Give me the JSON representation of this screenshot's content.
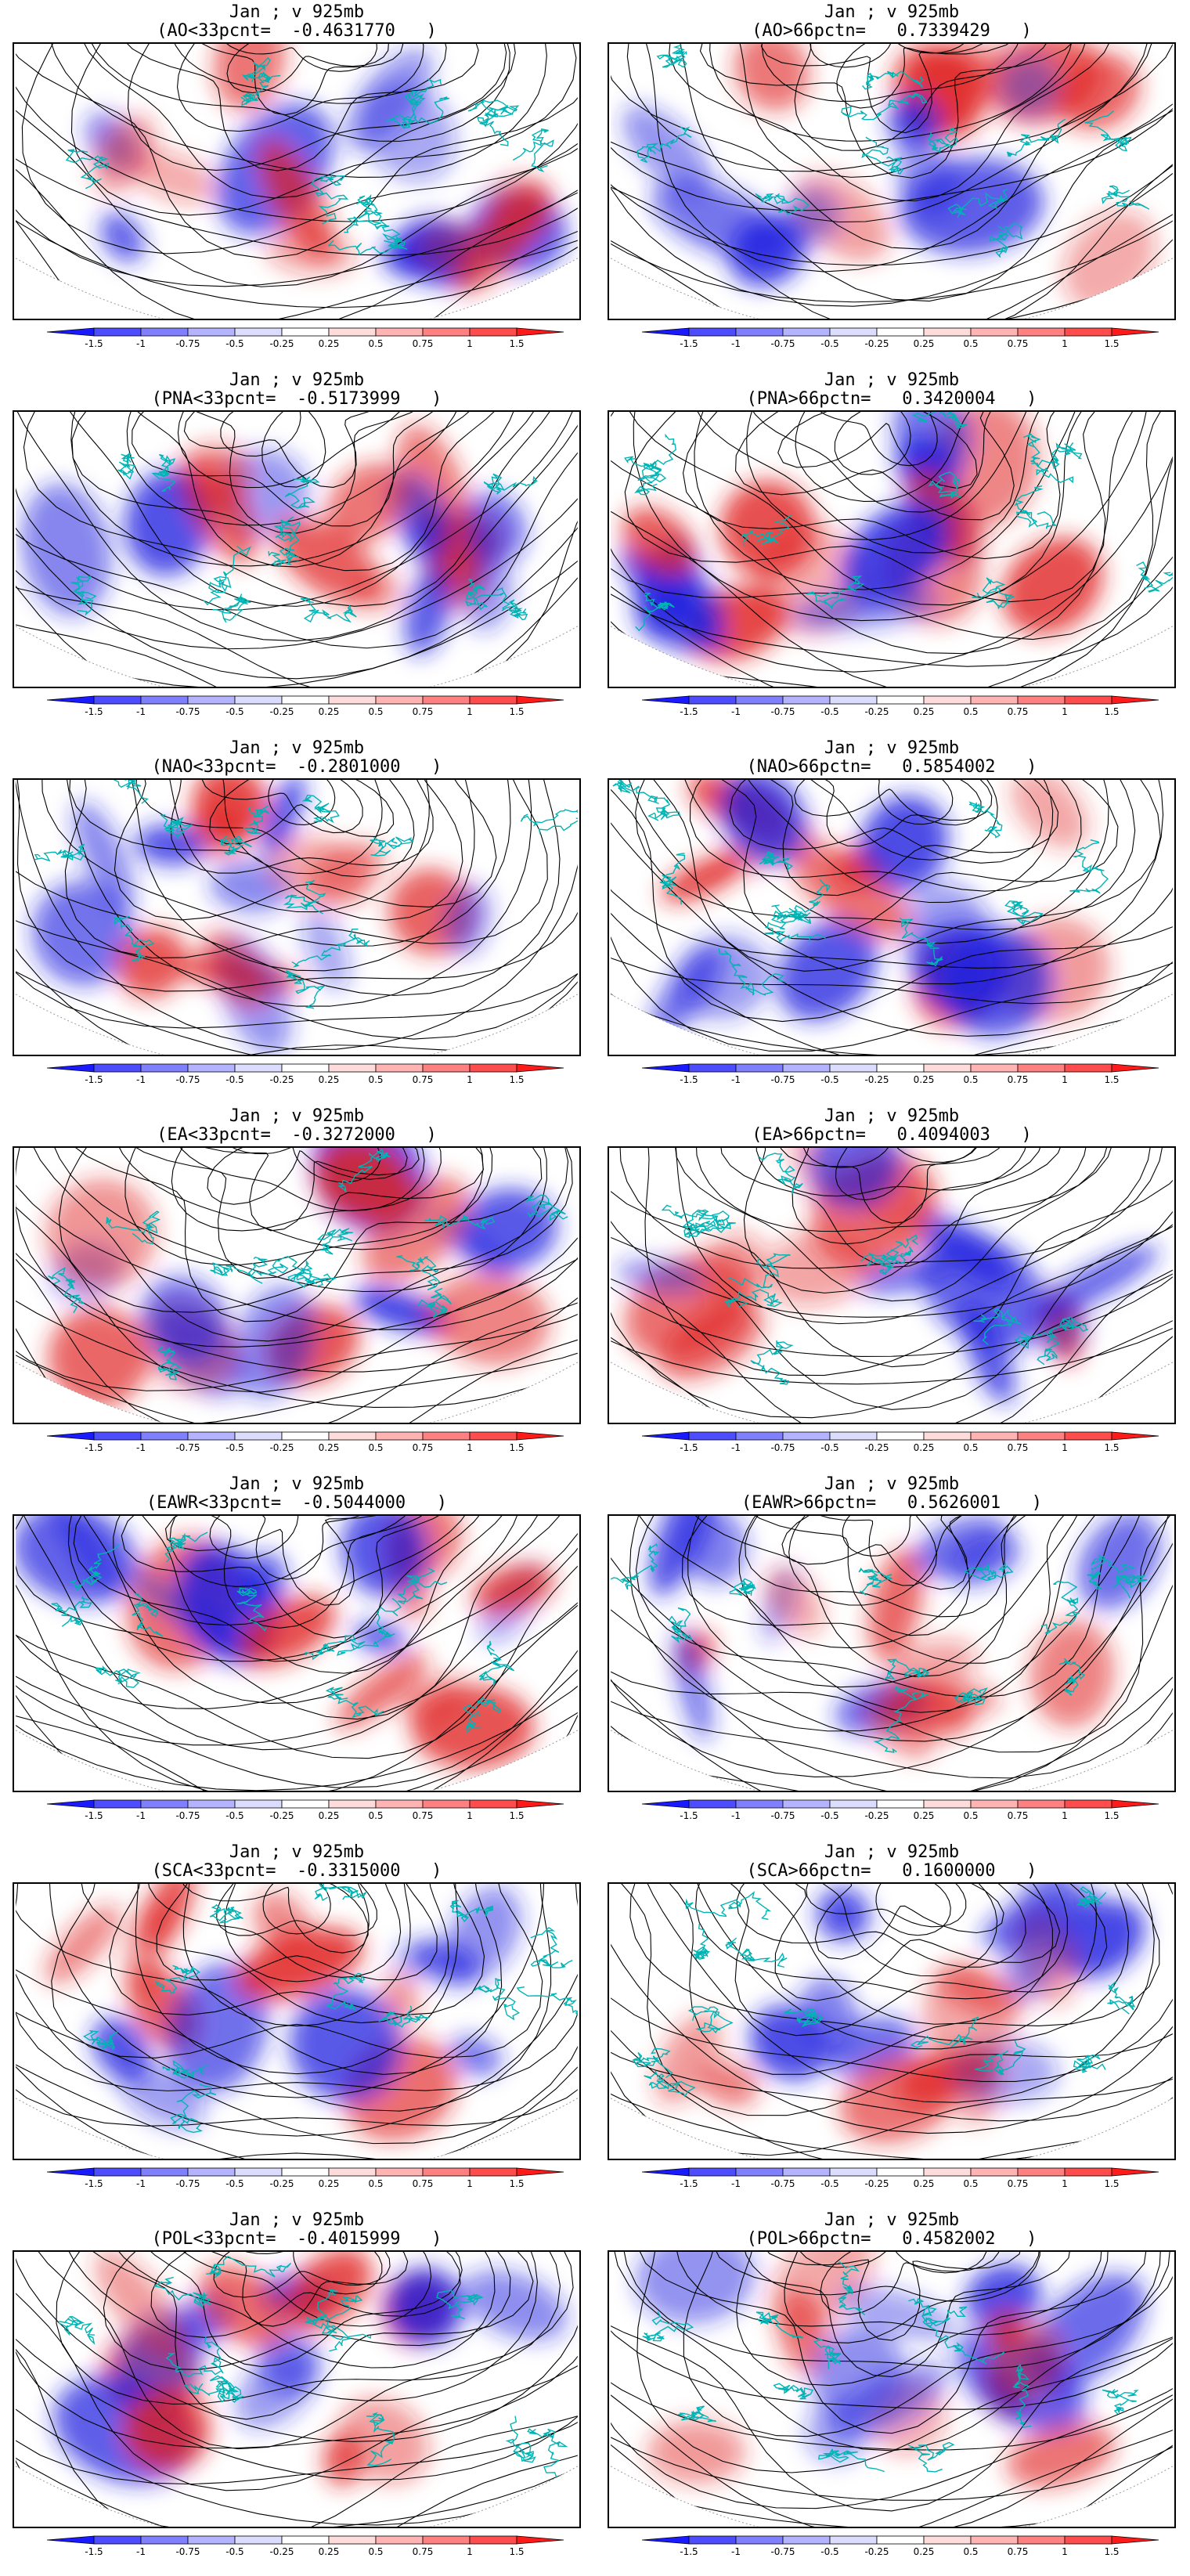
{
  "panels": [
    {
      "line1": "Jan ; v 925mb",
      "line2": "(AO<33pcnt=  -0.4631770   )"
    },
    {
      "line1": "Jan ; v 925mb",
      "line2": "(AO>66pctn=   0.7339429   )"
    },
    {
      "line1": "Jan ; v 925mb",
      "line2": "(PNA<33pcnt=  -0.5173999   )"
    },
    {
      "line1": "Jan ; v 925mb",
      "line2": "(PNA>66pctn=   0.3420004   )"
    },
    {
      "line1": "Jan ; v 925mb",
      "line2": "(NAO<33pcnt=  -0.2801000   )"
    },
    {
      "line1": "Jan ; v 925mb",
      "line2": "(NAO>66pctn=   0.5854002   )"
    },
    {
      "line1": "Jan ; v 925mb",
      "line2": "(EA<33pcnt=  -0.3272000   )"
    },
    {
      "line1": "Jan ; v 925mb",
      "line2": "(EA>66pctn=   0.4094003   )"
    },
    {
      "line1": "Jan ; v 925mb",
      "line2": "(EAWR<33pcnt=  -0.5044000   )"
    },
    {
      "line1": "Jan ; v 925mb",
      "line2": "(EAWR>66pctn=   0.5626001   )"
    },
    {
      "line1": "Jan ; v 925mb",
      "line2": "(SCA<33pcnt=  -0.3315000   )"
    },
    {
      "line1": "Jan ; v 925mb",
      "line2": "(SCA>66pctn=   0.1600000   )"
    },
    {
      "line1": "Jan ; v 925mb",
      "line2": "(POL<33pcnt=  -0.4015999   )"
    },
    {
      "line1": "Jan ; v 925mb",
      "line2": "(POL>66pctn=   0.4582002   )"
    }
  ],
  "colorbar": {
    "labels": [
      "-1.5",
      "-1",
      "-0.75",
      "-0.5",
      "-0.25",
      "0.25",
      "0.5",
      "0.75",
      "1",
      "1.5"
    ],
    "colors": [
      "#1a1aff",
      "#4d4dff",
      "#8080ff",
      "#b3b3ff",
      "#dcdcff",
      "#ffffff",
      "#ffdcdc",
      "#ffb3b3",
      "#ff8080",
      "#ff4d4d",
      "#ff1a1a"
    ]
  },
  "colors": {
    "coastline": "#00b4b4",
    "streamline": "#000000",
    "positive": "#e02020",
    "negative": "#2020e0"
  },
  "chart_data": {
    "type": "heatmap",
    "variable": "v 925mb",
    "month": "Jan",
    "panels": [
      {
        "index": "AO",
        "condition": "<33pcnt",
        "value": -0.463177
      },
      {
        "index": "AO",
        "condition": ">66pctn",
        "value": 0.7339429
      },
      {
        "index": "PNA",
        "condition": "<33pcnt",
        "value": -0.5173999
      },
      {
        "index": "PNA",
        "condition": ">66pctn",
        "value": 0.3420004
      },
      {
        "index": "NAO",
        "condition": "<33pcnt",
        "value": -0.2801
      },
      {
        "index": "NAO",
        "condition": ">66pctn",
        "value": 0.5854002
      },
      {
        "index": "EA",
        "condition": "<33pcnt",
        "value": -0.3272
      },
      {
        "index": "EA",
        "condition": ">66pctn",
        "value": 0.4094003
      },
      {
        "index": "EAWR",
        "condition": "<33pcnt",
        "value": -0.5044
      },
      {
        "index": "EAWR",
        "condition": ">66pctn",
        "value": 0.5626001
      },
      {
        "index": "SCA",
        "condition": "<33pcnt",
        "value": -0.3315
      },
      {
        "index": "SCA",
        "condition": ">66pctn",
        "value": 0.16
      },
      {
        "index": "POL",
        "condition": "<33pcnt",
        "value": -0.4015999
      },
      {
        "index": "POL",
        "condition": ">66pctn",
        "value": 0.4582002
      }
    ],
    "colorbar_levels": [
      -1.5,
      -1,
      -0.75,
      -0.5,
      -0.25,
      0.25,
      0.5,
      0.75,
      1,
      1.5
    ]
  }
}
